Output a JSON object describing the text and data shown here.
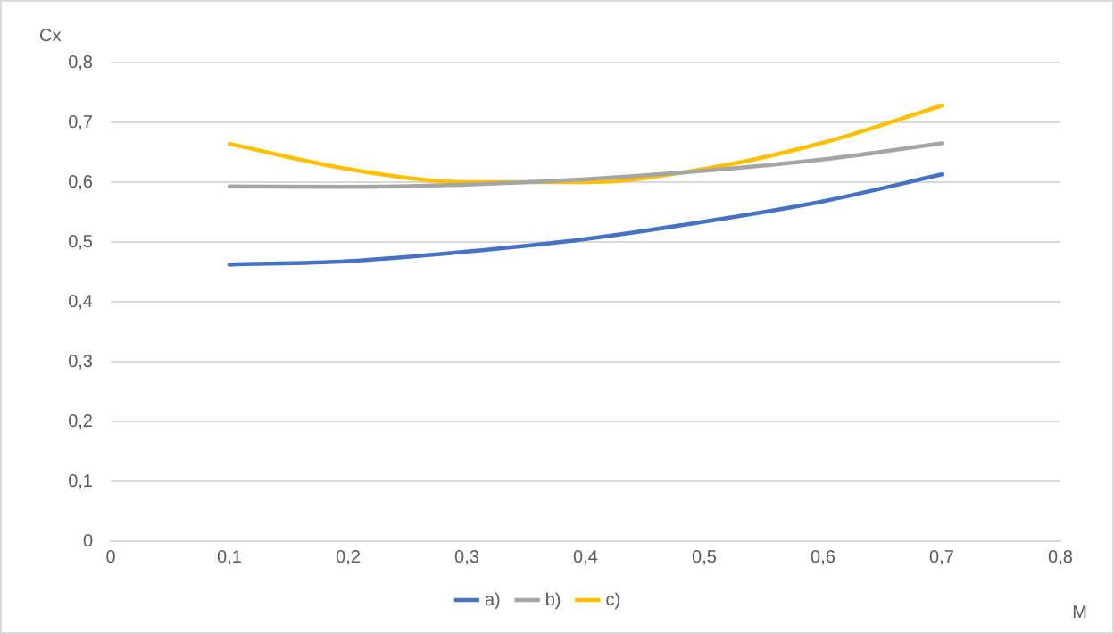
{
  "chart_data": {
    "type": "line",
    "xlabel": "M",
    "ylabel": "Cx",
    "x": [
      0.1,
      0.2,
      0.3,
      0.4,
      0.5,
      0.6,
      0.7
    ],
    "xlim": [
      0,
      0.8
    ],
    "xticks": [
      {
        "value": 0,
        "label": "0"
      },
      {
        "value": 0.1,
        "label": "0,1"
      },
      {
        "value": 0.2,
        "label": "0,2"
      },
      {
        "value": 0.3,
        "label": "0,3"
      },
      {
        "value": 0.4,
        "label": "0,4"
      },
      {
        "value": 0.5,
        "label": "0,5"
      },
      {
        "value": 0.6,
        "label": "0,6"
      },
      {
        "value": 0.7,
        "label": "0,7"
      },
      {
        "value": 0.8,
        "label": "0,8"
      }
    ],
    "ylim": [
      0,
      0.8
    ],
    "yticks": [
      {
        "value": 0,
        "label": "0"
      },
      {
        "value": 0.1,
        "label": "0,1"
      },
      {
        "value": 0.2,
        "label": "0,2"
      },
      {
        "value": 0.3,
        "label": "0,3"
      },
      {
        "value": 0.4,
        "label": "0,4"
      },
      {
        "value": 0.5,
        "label": "0,5"
      },
      {
        "value": 0.6,
        "label": "0,6"
      },
      {
        "value": 0.7,
        "label": "0,7"
      },
      {
        "value": 0.8,
        "label": "0,8"
      }
    ],
    "series": [
      {
        "name": "a)",
        "color": "#4472c4",
        "values": [
          0.462,
          0.468,
          0.484,
          0.505,
          0.534,
          0.568,
          0.613
        ]
      },
      {
        "name": "b)",
        "color": "#a5a5a5",
        "values": [
          0.593,
          0.592,
          0.596,
          0.605,
          0.619,
          0.638,
          0.665
        ]
      },
      {
        "name": "c)",
        "color": "#ffc000",
        "values": [
          0.664,
          0.622,
          0.6,
          0.6,
          0.622,
          0.666,
          0.728
        ]
      }
    ],
    "grid": "y",
    "legend": "bottom",
    "marker": "none",
    "line_style": "solid"
  }
}
